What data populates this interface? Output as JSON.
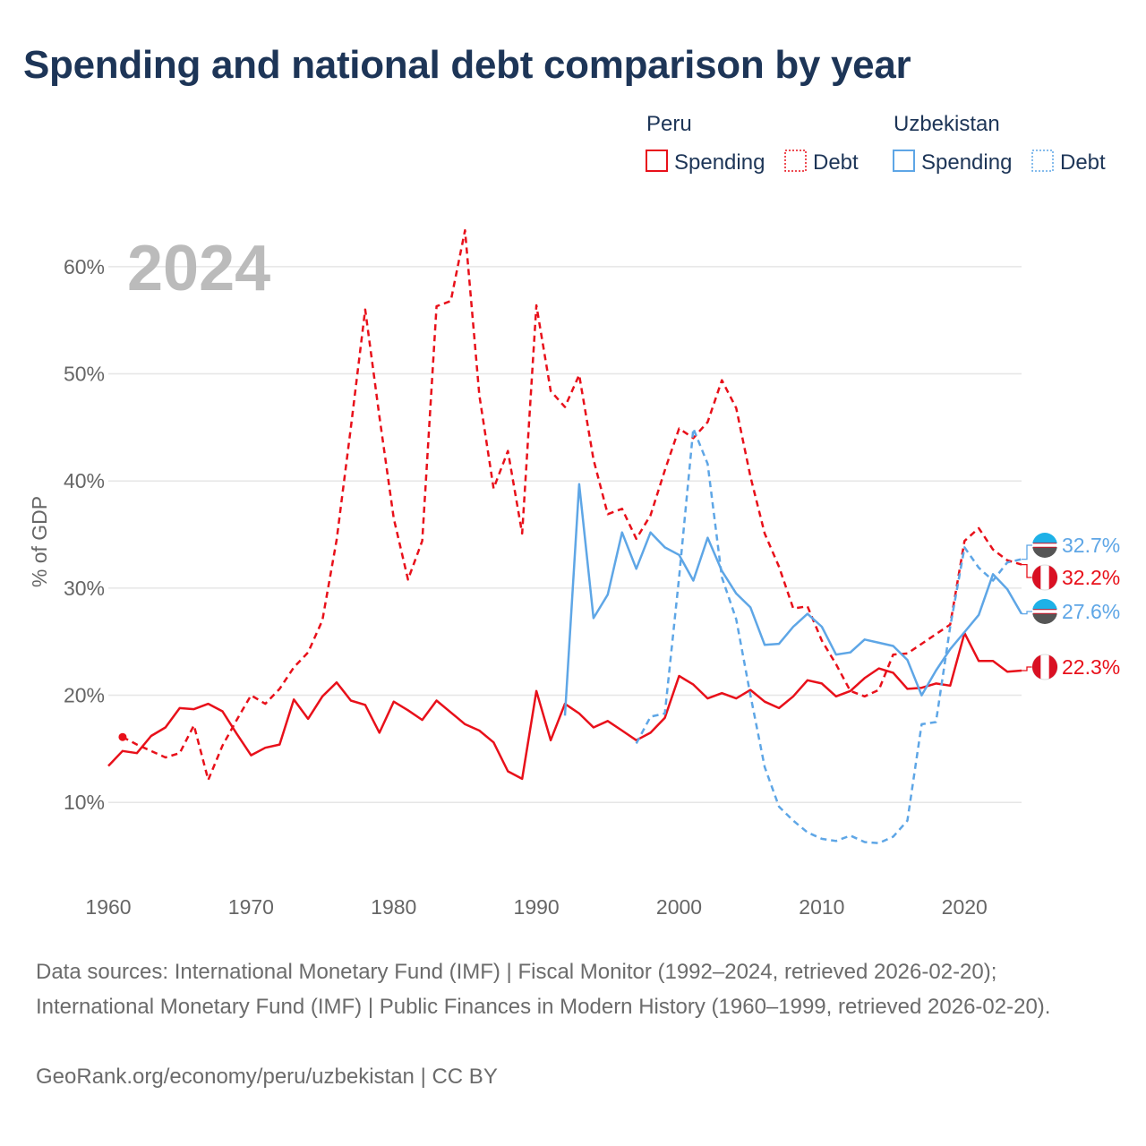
{
  "title": "Spending and national debt comparison by year",
  "sources": "Data sources: International Monetary Fund (IMF) | Fiscal Monitor (1992–2024, retrieved 2026-02-20); International Monetary Fund (IMF) | Public Finances in Modern History (1960–1999, retrieved 2026-02-20).",
  "credit": "GeoRank.org/economy/peru/uzbekistan | CC BY",
  "colors": {
    "peru": "#e8101a",
    "uzbekistan": "#5ea6e6",
    "text": "#1d3557",
    "grid": "#e6e6e6"
  },
  "legend": {
    "groups": [
      {
        "name": "Peru",
        "items": [
          "Spending",
          "Debt"
        ]
      },
      {
        "name": "Uzbekistan",
        "items": [
          "Spending",
          "Debt"
        ]
      }
    ]
  },
  "chart_data": {
    "type": "line",
    "watermark": "2024",
    "ylabel": "% of GDP",
    "xlim": [
      1960,
      2024
    ],
    "ylim": [
      3,
      64
    ],
    "yticks": [
      10,
      20,
      30,
      40,
      50,
      60
    ],
    "ytick_labels": [
      "10%",
      "20%",
      "30%",
      "40%",
      "50%",
      "60%"
    ],
    "xticks": [
      1960,
      1970,
      1980,
      1990,
      2000,
      2010,
      2020
    ],
    "xtick_labels": [
      "1960",
      "1970",
      "1980",
      "1990",
      "2000",
      "2010",
      "2020"
    ],
    "grid": true,
    "series": [
      {
        "name": "Peru Spending",
        "country": "peru",
        "style": "solid",
        "x": [
          1960,
          1961,
          1962,
          1963,
          1964,
          1965,
          1966,
          1967,
          1968,
          1969,
          1970,
          1971,
          1972,
          1973,
          1974,
          1975,
          1976,
          1977,
          1978,
          1979,
          1980,
          1981,
          1982,
          1983,
          1984,
          1985,
          1986,
          1987,
          1988,
          1989,
          1990,
          1991,
          1992,
          1993,
          1994,
          1995,
          1996,
          1997,
          1998,
          1999,
          2000,
          2001,
          2002,
          2003,
          2004,
          2005,
          2006,
          2007,
          2008,
          2009,
          2010,
          2011,
          2012,
          2013,
          2014,
          2015,
          2016,
          2017,
          2018,
          2019,
          2020,
          2021,
          2022,
          2023,
          2024
        ],
        "values": [
          13.4,
          14.8,
          14.6,
          16.2,
          17.0,
          18.8,
          18.7,
          19.2,
          18.5,
          16.4,
          14.4,
          15.1,
          15.4,
          19.6,
          17.8,
          19.9,
          21.2,
          19.5,
          19.1,
          16.5,
          19.4,
          18.6,
          17.7,
          19.5,
          18.4,
          17.3,
          16.7,
          15.6,
          12.9,
          12.2,
          20.4,
          15.8,
          19.2,
          18.3,
          17.0,
          17.6,
          16.7,
          15.8,
          16.5,
          17.9,
          21.8,
          21.0,
          19.7,
          20.2,
          19.7,
          20.5,
          19.4,
          18.8,
          19.9,
          21.4,
          21.1,
          19.9,
          20.4,
          21.6,
          22.5,
          22.1,
          20.6,
          20.7,
          21.1,
          20.9,
          25.8,
          23.2,
          23.2,
          22.2,
          22.3
        ]
      },
      {
        "name": "Peru Debt",
        "country": "peru",
        "style": "dashed",
        "x": [
          1961,
          1962,
          1963,
          1964,
          1965,
          1966,
          1967,
          1968,
          1969,
          1970,
          1971,
          1972,
          1973,
          1974,
          1975,
          1976,
          1977,
          1978,
          1979,
          1980,
          1981,
          1982,
          1983,
          1984,
          1985,
          1986,
          1987,
          1988,
          1989,
          1990,
          1991,
          1992,
          1993,
          1994,
          1995,
          1996,
          1997,
          1998,
          1999,
          2000,
          2001,
          2002,
          2003,
          2004,
          2005,
          2006,
          2007,
          2008,
          2009,
          2010,
          2011,
          2012,
          2013,
          2014,
          2015,
          2016,
          2017,
          2018,
          2019,
          2020,
          2021,
          2022,
          2023,
          2024
        ],
        "values": [
          16.1,
          15.4,
          14.8,
          14.2,
          14.6,
          17.2,
          12.1,
          15.3,
          17.7,
          20.0,
          19.2,
          20.6,
          22.6,
          24.0,
          27.0,
          34.5,
          45.0,
          56.0,
          46.0,
          36.5,
          30.8,
          34.4,
          56.3,
          56.8,
          63.4,
          48.0,
          39.3,
          42.8,
          35.1,
          56.4,
          48.4,
          46.9,
          49.9,
          42.0,
          36.9,
          37.4,
          34.6,
          36.8,
          41.0,
          44.9,
          44.0,
          45.5,
          49.4,
          46.8,
          40.4,
          35.1,
          32.0,
          28.1,
          28.3,
          25.1,
          22.9,
          20.4,
          19.9,
          20.5,
          23.8,
          23.9,
          24.8,
          25.7,
          26.6,
          34.4,
          35.6,
          33.6,
          32.6,
          32.2
        ]
      },
      {
        "name": "Uzbekistan Spending",
        "country": "uzbekistan",
        "style": "solid",
        "x": [
          1992,
          1993,
          1994,
          1995,
          1996,
          1997,
          1998,
          1999,
          2000,
          2001,
          2002,
          2003,
          2004,
          2005,
          2006,
          2007,
          2008,
          2009,
          2010,
          2011,
          2012,
          2013,
          2014,
          2015,
          2016,
          2017,
          2018,
          2019,
          2020,
          2021,
          2022,
          2023,
          2024
        ],
        "values": [
          18.1,
          39.7,
          27.2,
          29.4,
          35.2,
          31.8,
          35.2,
          33.8,
          33.1,
          30.7,
          34.7,
          31.6,
          29.5,
          28.2,
          24.7,
          24.8,
          26.4,
          27.6,
          26.4,
          23.8,
          24.0,
          25.2,
          24.9,
          24.6,
          23.3,
          20.0,
          22.3,
          24.3,
          25.9,
          27.5,
          31.3,
          29.9,
          27.6
        ]
      },
      {
        "name": "Uzbekistan Debt",
        "country": "uzbekistan",
        "style": "dashed",
        "x": [
          1997,
          1998,
          1999,
          2000,
          2001,
          2002,
          2003,
          2004,
          2005,
          2006,
          2007,
          2008,
          2009,
          2010,
          2011,
          2012,
          2013,
          2014,
          2015,
          2016,
          2017,
          2018,
          2019,
          2020,
          2021,
          2022,
          2023,
          2024
        ],
        "values": [
          15.5,
          18.0,
          18.3,
          31.0,
          44.9,
          41.6,
          31.0,
          27.1,
          20.0,
          13.3,
          9.6,
          8.3,
          7.2,
          6.6,
          6.4,
          6.9,
          6.3,
          6.2,
          6.8,
          8.3,
          17.3,
          17.5,
          26.4,
          33.8,
          31.9,
          30.7,
          32.4,
          32.7
        ]
      }
    ],
    "end_labels": [
      {
        "country": "uzbekistan",
        "text": "32.7%",
        "value": 32.7
      },
      {
        "country": "peru",
        "text": "32.2%",
        "value": 32.2
      },
      {
        "country": "uzbekistan",
        "text": "27.6%",
        "value": 27.6
      },
      {
        "country": "peru",
        "text": "22.3%",
        "value": 22.3
      }
    ]
  }
}
